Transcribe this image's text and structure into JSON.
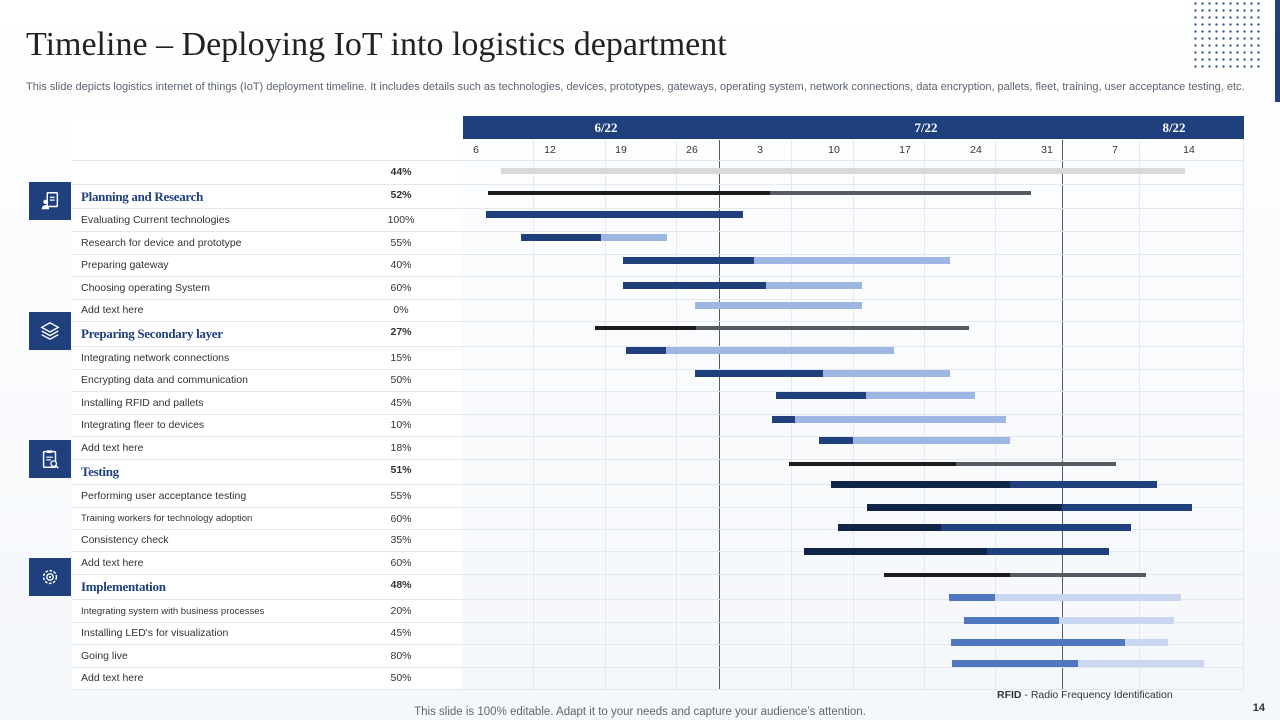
{
  "title": "Timeline – Deploying IoT into logistics department",
  "subtitle": "This slide depicts logistics internet of things (IoT) deployment timeline. It includes details such as technologies, devices, prototypes, gateways, operating system, network connections, data encryption, pallets, fleet, training, user acceptance testing, etc.",
  "overall_pct": "44%",
  "months": [
    "6/22",
    "7/22",
    "8/22"
  ],
  "days": [
    "6",
    "12",
    "19",
    "26",
    "3",
    "10",
    "17",
    "24",
    "31",
    "7",
    "14"
  ],
  "colors": {
    "navy": "#1f3f7d",
    "dark": "#0f2447",
    "light": "#9db7e2",
    "black": "#1c1c1c",
    "gray": "#555a63",
    "overall": "#d9d9d9"
  },
  "phases": [
    {
      "name": "Planning and Research",
      "icon": "clipboard-person-icon",
      "pct": "52%",
      "progress": 0.52,
      "tasks": [
        {
          "label": "Evaluating Current technologies",
          "pct": "100%",
          "progress": 1.0
        },
        {
          "label": "Research for device and prototype",
          "pct": "55%",
          "progress": 0.55
        },
        {
          "label": "Preparing gateway",
          "pct": "40%",
          "progress": 0.4
        },
        {
          "label": "Choosing operating System",
          "pct": "60%",
          "progress": 0.6
        },
        {
          "label": "Add text here",
          "pct": "0%",
          "progress": 0.0
        }
      ]
    },
    {
      "name": "Preparing Secondary layer",
      "icon": "layers-settings-icon",
      "pct": "27%",
      "progress": 0.27,
      "tasks": [
        {
          "label": "Integrating network connections",
          "pct": "15%",
          "progress": 0.15
        },
        {
          "label": "Encrypting data and communication",
          "pct": "50%",
          "progress": 0.5
        },
        {
          "label": "Installing RFID  and pallets",
          "pct": "45%",
          "progress": 0.45
        },
        {
          "label": "Integrating fleer to devices",
          "pct": "10%",
          "progress": 0.1
        },
        {
          "label": "Add text  here",
          "pct": "18%",
          "progress": 0.18
        }
      ]
    },
    {
      "name": "Testing",
      "icon": "clipboard-check-icon",
      "pct": "51%",
      "progress": 0.51,
      "tasks": [
        {
          "label": "Performing user acceptance testing",
          "pct": "55%",
          "progress": 0.55
        },
        {
          "label": "Training workers for technology adoption",
          "pct": "60%",
          "progress": 0.6
        },
        {
          "label": "Consistency check",
          "pct": "35%",
          "progress": 0.35
        },
        {
          "label": "Add text here",
          "pct": "60%",
          "progress": 0.6
        }
      ]
    },
    {
      "name": "Implementation",
      "icon": "gear-target-icon",
      "pct": "48%",
      "progress": 0.48,
      "tasks": [
        {
          "label": "Integrating system with business processes",
          "pct": "20%",
          "progress": 0.2
        },
        {
          "label": "Installing LED's  for visualization",
          "pct": "45%",
          "progress": 0.45
        },
        {
          "label": "Going live",
          "pct": "80%",
          "progress": 0.8
        },
        {
          "label": "Add text here",
          "pct": "50%",
          "progress": 0.5
        }
      ]
    }
  ],
  "footnote": {
    "abbr": "RFID",
    "text": " - Radio Frequency Identification"
  },
  "footer": "This slide is 100% editable. Adapt it to your needs and capture your audience’s attention.",
  "page_number": "14"
}
